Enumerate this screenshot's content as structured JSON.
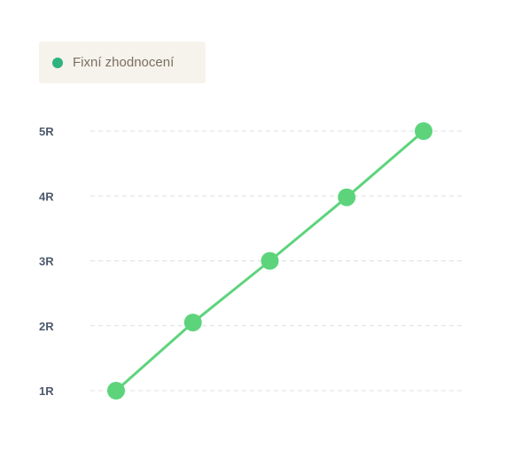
{
  "legend": {
    "label": "Fixní zhodnocení",
    "color": "#2fb37e"
  },
  "chart_data": {
    "type": "line",
    "title": "",
    "xlabel": "",
    "ylabel": "",
    "x": [
      1,
      2,
      3,
      4,
      5
    ],
    "ylim": [
      1,
      5
    ],
    "y_ticks": [
      {
        "value": 5,
        "label": "5R"
      },
      {
        "value": 4,
        "label": "4R"
      },
      {
        "value": 3,
        "label": "3R"
      },
      {
        "value": 2,
        "label": "2R"
      },
      {
        "value": 1,
        "label": "1R"
      }
    ],
    "grid": true,
    "legend_position": "top-left",
    "series": [
      {
        "name": "Fixní zhodnocení",
        "color": "#5dd47c",
        "values": [
          1,
          2.05,
          3,
          3.98,
          5
        ]
      }
    ]
  }
}
